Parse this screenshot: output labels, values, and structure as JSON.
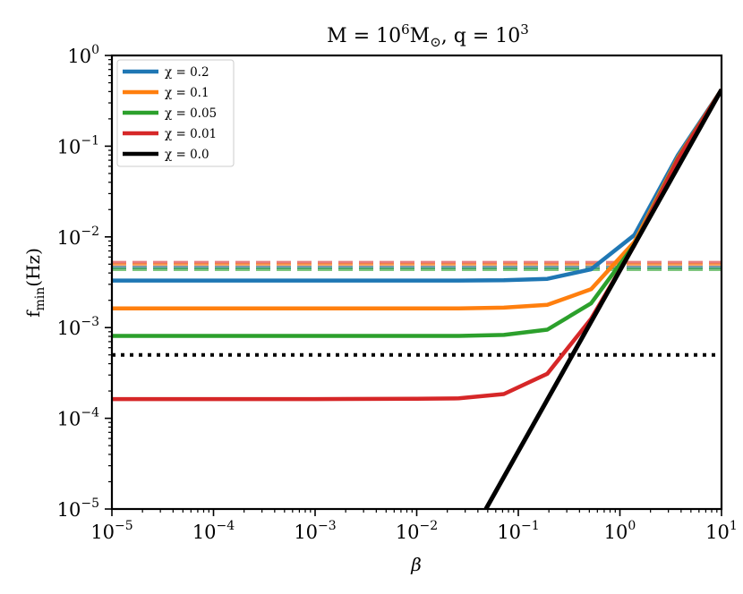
{
  "chart_data": {
    "type": "line",
    "title_main": "M = 10",
    "title_mass_exp": "6",
    "title_mass_unit": "M",
    "title_sun_symbol": "⊙",
    "title_q": ", q = 10",
    "title_q_exp": "3",
    "xlabel": "β",
    "ylabel_f": "f",
    "ylabel_sub": "min",
    "ylabel_unit": "(Hz)",
    "xscale": "log",
    "yscale": "log",
    "xlim": [
      1e-05,
      10
    ],
    "ylim": [
      1e-05,
      1
    ],
    "grid": false,
    "legend_location": "upper-left",
    "tick_base": "10",
    "x_ticks": [
      {
        "value": 1e-05,
        "exp": "−5"
      },
      {
        "value": 0.0001,
        "exp": "−4"
      },
      {
        "value": 0.001,
        "exp": "−3"
      },
      {
        "value": 0.01,
        "exp": "−2"
      },
      {
        "value": 0.1,
        "exp": "−1"
      },
      {
        "value": 1,
        "exp": "0"
      },
      {
        "value": 10,
        "exp": "1"
      }
    ],
    "y_ticks": [
      {
        "value": 1e-05,
        "exp": "−5"
      },
      {
        "value": 0.0001,
        "exp": "−4"
      },
      {
        "value": 0.001,
        "exp": "−3"
      },
      {
        "value": 0.01,
        "exp": "−2"
      },
      {
        "value": 0.1,
        "exp": "−1"
      },
      {
        "value": 1,
        "exp": "0"
      }
    ],
    "series": [
      {
        "name": "chi-0.2",
        "label": "χ = 0.2",
        "color": "#1f77b4",
        "x": [
          1e-05,
          0.0001,
          0.001,
          0.01,
          0.026,
          0.072,
          0.193,
          0.52,
          1.39,
          3.73,
          10
        ],
        "y": [
          0.0033,
          0.0033,
          0.0033,
          0.0033,
          0.0033,
          0.00333,
          0.00345,
          0.0044,
          0.0105,
          0.08,
          0.42
        ]
      },
      {
        "name": "chi-0.1",
        "label": "χ = 0.1",
        "color": "#ff7f0e",
        "x": [
          1e-05,
          0.0001,
          0.001,
          0.01,
          0.026,
          0.072,
          0.193,
          0.52,
          1.39,
          3.73,
          10
        ],
        "y": [
          0.00163,
          0.00163,
          0.00163,
          0.00163,
          0.00163,
          0.00166,
          0.00178,
          0.00265,
          0.0088,
          0.075,
          0.42
        ]
      },
      {
        "name": "chi-0.05",
        "label": "χ = 0.05",
        "color": "#2ca02c",
        "x": [
          1e-05,
          0.0001,
          0.001,
          0.01,
          0.026,
          0.072,
          0.193,
          0.52,
          1.39,
          3.73,
          10
        ],
        "y": [
          0.00081,
          0.00081,
          0.00081,
          0.00081,
          0.00081,
          0.00083,
          0.00095,
          0.00185,
          0.0082,
          0.073,
          0.42
        ]
      },
      {
        "name": "chi-0.01",
        "label": "χ = 0.01",
        "color": "#d62728",
        "x": [
          1e-05,
          0.0001,
          0.001,
          0.01,
          0.026,
          0.072,
          0.193,
          0.52,
          1.39,
          3.73,
          10
        ],
        "y": [
          0.000163,
          0.000163,
          0.000163,
          0.000164,
          0.000166,
          0.000185,
          0.00031,
          0.00125,
          0.0081,
          0.072,
          0.42
        ]
      },
      {
        "name": "chi-0.0",
        "label": "χ = 0.0",
        "color": "#000000",
        "x": [
          0.048,
          10
        ],
        "y": [
          1e-05,
          0.42
        ]
      }
    ],
    "reference_lines": [
      {
        "name": "dashed-red",
        "y": 0.0052,
        "color": "#d62728",
        "style": "dashed",
        "opacity": 0.6
      },
      {
        "name": "dashed-orange",
        "y": 0.0049,
        "color": "#ff7f0e",
        "style": "dashed",
        "opacity": 0.6
      },
      {
        "name": "dashed-blue",
        "y": 0.0046,
        "color": "#1f77b4",
        "style": "dashed",
        "opacity": 0.6
      },
      {
        "name": "dashed-green",
        "y": 0.0044,
        "color": "#2ca02c",
        "style": "dashed",
        "opacity": 0.6
      },
      {
        "name": "dotted-black",
        "y": 0.0005,
        "color": "#000000",
        "style": "dotted",
        "opacity": 1
      }
    ]
  }
}
